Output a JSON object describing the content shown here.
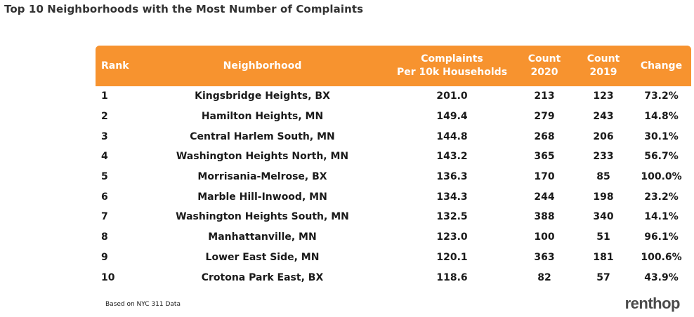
{
  "title": "Top 10 Neighborhoods with the Most Number of Complaints",
  "footnote": "Based on NYC 311 Data",
  "logo_text": "renthop",
  "colors": {
    "header_bg": "#f7932f",
    "header_text": "#ffffff"
  },
  "chart_data": {
    "type": "table",
    "columns": [
      {
        "line1": "Rank",
        "line2": ""
      },
      {
        "line1": "Neighborhood",
        "line2": ""
      },
      {
        "line1": "Complaints",
        "line2": "Per 10k Households"
      },
      {
        "line1": "Count",
        "line2": "2020"
      },
      {
        "line1": "Count",
        "line2": "2019"
      },
      {
        "line1": "Change",
        "line2": ""
      }
    ],
    "rows": [
      [
        "1",
        "Kingsbridge Heights, BX",
        "201.0",
        "213",
        "123",
        "73.2%"
      ],
      [
        "2",
        "Hamilton Heights, MN",
        "149.4",
        "279",
        "243",
        "14.8%"
      ],
      [
        "3",
        "Central Harlem South, MN",
        "144.8",
        "268",
        "206",
        "30.1%"
      ],
      [
        "4",
        "Washington Heights North, MN",
        "143.2",
        "365",
        "233",
        "56.7%"
      ],
      [
        "5",
        "Morrisania-Melrose, BX",
        "136.3",
        "170",
        "85",
        "100.0%"
      ],
      [
        "6",
        "Marble Hill-Inwood, MN",
        "134.3",
        "244",
        "198",
        "23.2%"
      ],
      [
        "7",
        "Washington Heights South, MN",
        "132.5",
        "388",
        "340",
        "14.1%"
      ],
      [
        "8",
        "Manhattanville, MN",
        "123.0",
        "100",
        "51",
        "96.1%"
      ],
      [
        "9",
        "Lower East Side, MN",
        "120.1",
        "363",
        "181",
        "100.6%"
      ],
      [
        "10",
        "Crotona Park East, BX",
        "118.6",
        "82",
        "57",
        "43.9%"
      ]
    ]
  }
}
